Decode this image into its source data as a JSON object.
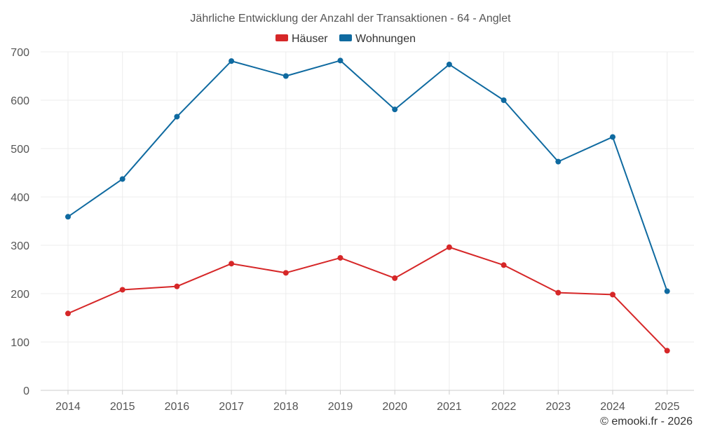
{
  "chart_data": {
    "type": "line",
    "title": "Jährliche Entwicklung der Anzahl der Transaktionen - 64 - Anglet",
    "categories": [
      "2014",
      "2015",
      "2016",
      "2017",
      "2018",
      "2019",
      "2020",
      "2021",
      "2022",
      "2023",
      "2024",
      "2025"
    ],
    "series": [
      {
        "name": "Häuser",
        "color": "#d62728",
        "values": [
          159,
          208,
          215,
          262,
          243,
          274,
          232,
          296,
          259,
          202,
          198,
          82
        ]
      },
      {
        "name": "Wohnungen",
        "color": "#0f6aa0",
        "values": [
          359,
          437,
          566,
          681,
          650,
          682,
          581,
          674,
          600,
          473,
          524,
          205
        ]
      }
    ],
    "ylim": [
      0,
      700
    ],
    "yticks": [
      0,
      100,
      200,
      300,
      400,
      500,
      600,
      700
    ],
    "grid": true,
    "legend_position": "top-center",
    "xlabel": "",
    "ylabel": ""
  },
  "credit": "© emooki.fr - 2026"
}
